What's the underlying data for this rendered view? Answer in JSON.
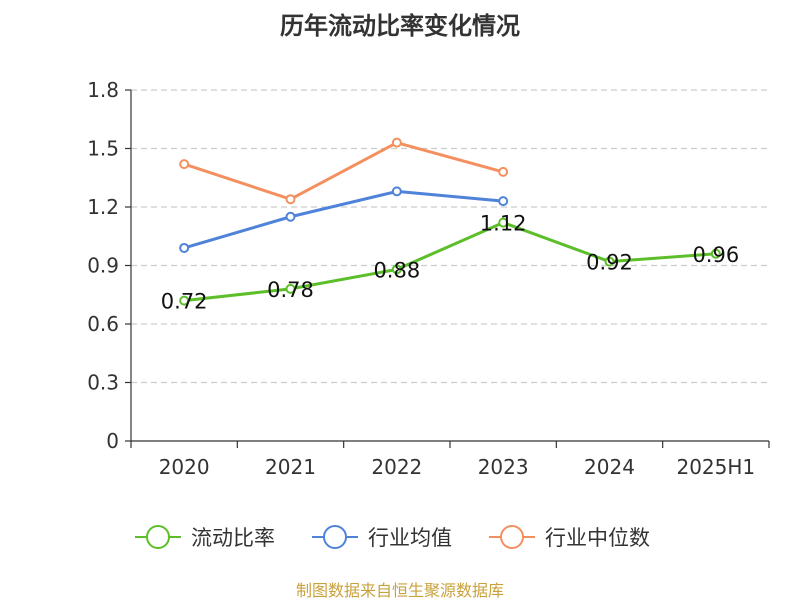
{
  "chart_data": {
    "type": "line",
    "title": "历年流动比率变化情况",
    "categories": [
      "2020",
      "2021",
      "2022",
      "2023",
      "2024",
      "2025H1"
    ],
    "ylim": [
      0,
      1.8
    ],
    "yticks": [
      "0",
      "0.3",
      "0.6",
      "0.9",
      "1.2",
      "1.5",
      "1.8"
    ],
    "grid": true,
    "legend_position": "bottom",
    "series": [
      {
        "name": "流动比率",
        "color": "#5cbf2a",
        "values": [
          0.72,
          0.78,
          0.88,
          1.12,
          0.92,
          0.96
        ],
        "labels": [
          "0.72",
          "0.78",
          "0.88",
          "1.12",
          "0.92",
          "0.96"
        ]
      },
      {
        "name": "行业均值",
        "color": "#4f82d9",
        "values": [
          0.99,
          1.15,
          1.28,
          1.23,
          null,
          null
        ]
      },
      {
        "name": "行业中位数",
        "color": "#f49060",
        "values": [
          1.42,
          1.24,
          1.53,
          1.38,
          null,
          null
        ]
      }
    ]
  },
  "source": "制图数据来自恒生聚源数据库"
}
